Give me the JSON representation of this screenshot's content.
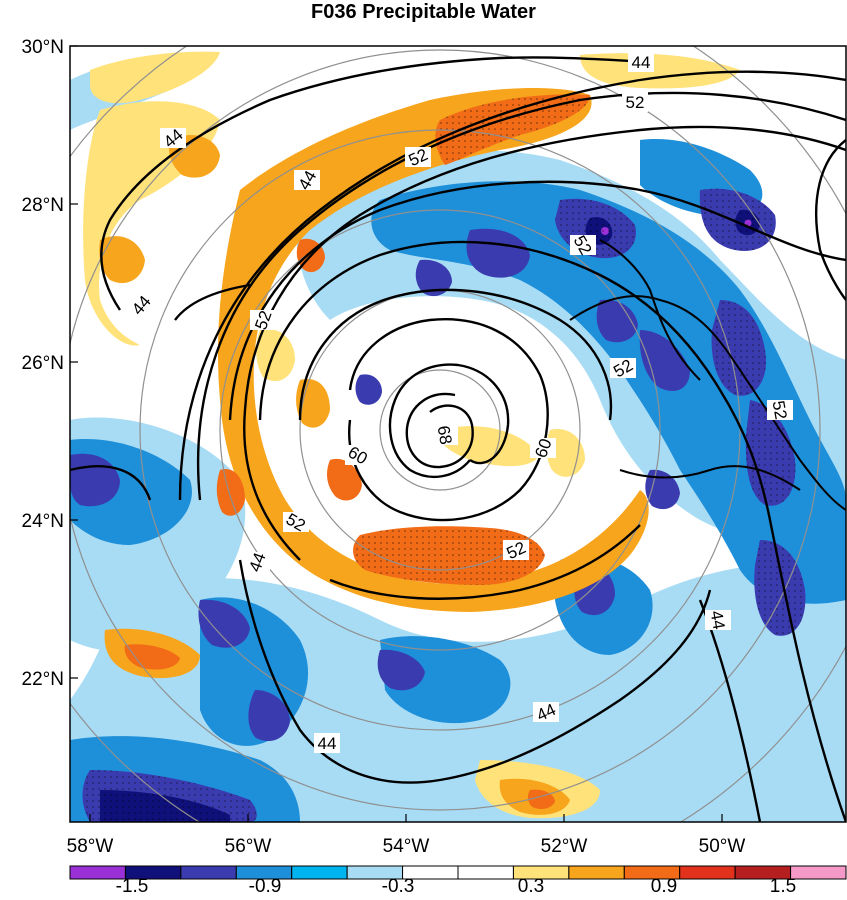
{
  "title": "F036 Precipitable Water",
  "lat_labels": [
    "30°N",
    "28°N",
    "26°N",
    "24°N",
    "22°N"
  ],
  "lon_labels": [
    "58°W",
    "56°W",
    "54°W",
    "52°W",
    "50°W"
  ],
  "colorbar": {
    "colors": [
      "#9b30d6",
      "#10107a",
      "#3b3bb0",
      "#1e8fd9",
      "#00b4f0",
      "#a8dcf5",
      "#ffffff",
      "#ffffff",
      "#ffe27a",
      "#f7a51c",
      "#f26b17",
      "#e3321b",
      "#b51f1f",
      "#f59ac8"
    ],
    "labels": [
      "-1.5",
      "-0.9",
      "-0.3",
      "0.3",
      "0.9",
      "1.5"
    ]
  },
  "contour_labels": [
    "44",
    "52",
    "44",
    "52",
    "44",
    "52",
    "52",
    "44",
    "52",
    "60",
    "68",
    "60",
    "52",
    "52",
    "44",
    "44",
    "44",
    "52"
  ]
}
